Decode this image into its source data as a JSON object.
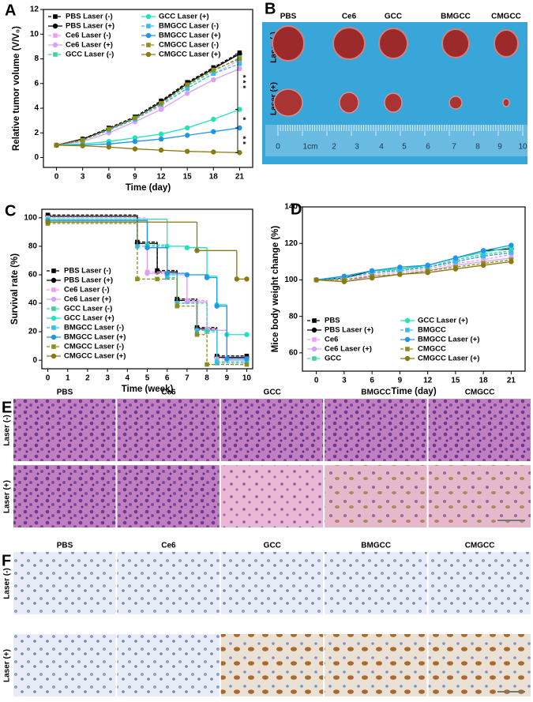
{
  "panel_labels": [
    "A",
    "B",
    "C",
    "D",
    "E",
    "F"
  ],
  "tumor_photo": {
    "columns": [
      "PBS",
      "Ce6",
      "GCC",
      "BMGCC",
      "CMGCC"
    ],
    "rows": [
      "Laser (-)",
      "Laser (+)"
    ],
    "ruler": [
      "0",
      "1cm",
      "2",
      "3",
      "4",
      "5",
      "6",
      "7",
      "8",
      "9",
      "10"
    ]
  },
  "he_stain": {
    "columns": [
      "PBS",
      "Ce6",
      "GCC",
      "BMGCC",
      "CMGCC"
    ],
    "rows": [
      "Laser (-)",
      "Laser (+)"
    ]
  },
  "ihc_stain": {
    "columns": [
      "PBS",
      "Ce6",
      "GCC",
      "BMGCC",
      "CMGCC"
    ],
    "rows": [
      "Laser (-)",
      "Laser (+)"
    ]
  },
  "chart_data": [
    {
      "type": "line",
      "xlabel": "Time (day)",
      "ylabel": "Relative tumor volume (V/V₀)",
      "x": [
        0,
        3,
        6,
        9,
        12,
        15,
        18,
        21
      ],
      "xlim": [
        -1.5,
        22.5
      ],
      "xticks": [
        0,
        3,
        6,
        9,
        12,
        15,
        18,
        21
      ],
      "ylim": [
        -0.8,
        12
      ],
      "yticks": [
        0,
        2,
        4,
        6,
        8,
        10,
        12
      ],
      "legend": "upper left",
      "legend_ncol": 2,
      "annotations": [
        "* * *",
        "*",
        "* *"
      ],
      "series": [
        {
          "name": "PBS Laser (-)",
          "color": "#000000",
          "marker": "square",
          "dash": true,
          "values": [
            1,
            1.5,
            2.4,
            3.3,
            4.6,
            6.1,
            7.3,
            8.5
          ]
        },
        {
          "name": "PBS Laser (+)",
          "color": "#000000",
          "marker": "circle",
          "dash": false,
          "values": [
            1,
            1.5,
            2.3,
            3.2,
            4.5,
            6.0,
            7.2,
            8.4
          ]
        },
        {
          "name": "Ce6 Laser (-)",
          "color": "#f49af4",
          "marker": "square",
          "dash": true,
          "values": [
            1,
            1.4,
            2.2,
            3.1,
            4.2,
            5.6,
            6.8,
            7.9
          ]
        },
        {
          "name": "Ce6 Laser (+)",
          "color": "#d6a2f5",
          "marker": "circle",
          "dash": false,
          "values": [
            1,
            1.3,
            2.0,
            2.9,
            3.9,
            5.2,
            6.3,
            7.2
          ]
        },
        {
          "name": "GCC Laser (-)",
          "color": "#3fd39a",
          "marker": "square",
          "dash": true,
          "values": [
            1,
            1.4,
            2.3,
            3.2,
            4.4,
            5.8,
            7.0,
            8.1
          ]
        },
        {
          "name": "GCC Laser (+)",
          "color": "#22e2b8",
          "marker": "circle",
          "dash": false,
          "values": [
            1,
            1.1,
            1.3,
            1.6,
            1.9,
            2.4,
            3.1,
            3.9
          ]
        },
        {
          "name": "BMGCC Laser (-)",
          "color": "#35bdf0",
          "marker": "square",
          "dash": true,
          "values": [
            1,
            1.4,
            2.2,
            3.1,
            4.3,
            5.6,
            6.8,
            7.6
          ]
        },
        {
          "name": "BMGCC Laser (+)",
          "color": "#1e96ea",
          "marker": "circle",
          "dash": false,
          "values": [
            1,
            1.0,
            1.1,
            1.3,
            1.5,
            1.8,
            2.1,
            2.4
          ]
        },
        {
          "name": "CMGCC Laser (-)",
          "color": "#8e8e1c",
          "marker": "square",
          "dash": true,
          "values": [
            1,
            1.4,
            2.3,
            3.2,
            4.4,
            5.9,
            7.1,
            8.0
          ]
        },
        {
          "name": "CMGCC Laser (+)",
          "color": "#8a7a12",
          "marker": "circle",
          "dash": false,
          "values": [
            1,
            0.95,
            0.85,
            0.7,
            0.6,
            0.5,
            0.45,
            0.4
          ]
        }
      ]
    },
    {
      "type": "line",
      "drawstyle": "steps-post",
      "xlabel": "Time (week)",
      "ylabel": "Survival rate (%)",
      "xlim": [
        -0.3,
        10.3
      ],
      "xticks": [
        0,
        1,
        2,
        3,
        4,
        5,
        6,
        7,
        8,
        9,
        10
      ],
      "ylim": [
        -6,
        106
      ],
      "yticks": [
        0,
        20,
        40,
        60,
        80,
        100
      ],
      "legend": "lower left",
      "legend_ncol": 1,
      "series": [
        {
          "name": "PBS Laser  (-)",
          "color": "#000000",
          "marker": "square",
          "dash": true,
          "x": [
            0,
            4.5,
            5.5,
            6.5,
            7.5,
            8.5,
            10
          ],
          "values": [
            102,
            83,
            63,
            43,
            23,
            3,
            3
          ]
        },
        {
          "name": "PBS Laser  (+)",
          "color": "#000000",
          "marker": "circle",
          "dash": false,
          "x": [
            0,
            4.5,
            5.5,
            6.5,
            7.5,
            8.5,
            10
          ],
          "values": [
            101,
            82,
            62,
            42,
            22,
            2,
            2
          ]
        },
        {
          "name": "Ce6 Laser  (-)",
          "color": "#f49af4",
          "marker": "square",
          "dash": true,
          "x": [
            0,
            5,
            6,
            7,
            8,
            8.5,
            10
          ],
          "values": [
            100,
            62,
            61,
            42,
            22,
            1,
            1
          ]
        },
        {
          "name": "Ce6 Laser  (+)",
          "color": "#d6a2f5",
          "marker": "circle",
          "dash": false,
          "x": [
            0,
            5,
            6,
            7,
            8,
            9,
            10
          ],
          "values": [
            99,
            61,
            60,
            41,
            21,
            0,
            0
          ]
        },
        {
          "name": "GCC Laser  (-)",
          "color": "#3fd39a",
          "marker": "square",
          "dash": true,
          "x": [
            0,
            5,
            6,
            6.5,
            8,
            8.5,
            10
          ],
          "values": [
            98,
            81,
            60,
            40,
            20,
            -1,
            -1
          ]
        },
        {
          "name": "GCC Laser  (+)",
          "color": "#22e2b8",
          "marker": "circle",
          "dash": false,
          "x": [
            0,
            6,
            7,
            8,
            8.5,
            9,
            10
          ],
          "values": [
            99,
            80,
            79,
            59,
            39,
            18,
            18
          ]
        },
        {
          "name": "BMGCC Laser  (-)",
          "color": "#35bdf0",
          "marker": "square",
          "dash": true,
          "x": [
            0,
            4.5,
            6,
            6.5,
            7.5,
            8.5,
            10
          ],
          "values": [
            97,
            80,
            58,
            40,
            21,
            -2,
            -2
          ]
        },
        {
          "name": "BMGCC Laser  (+)",
          "color": "#1e96ea",
          "marker": "circle",
          "dash": false,
          "x": [
            0,
            5,
            6,
            7,
            8,
            8.5,
            9,
            10
          ],
          "values": [
            98,
            79,
            61,
            60,
            58,
            38,
            1,
            1
          ]
        },
        {
          "name": "CMGCC Laser  (-)",
          "color": "#8e8e1c",
          "marker": "square",
          "dash": true,
          "x": [
            0,
            4.5,
            5.5,
            6.5,
            7.5,
            8,
            10
          ],
          "values": [
            96,
            57,
            57,
            38,
            18,
            -3,
            -3
          ]
        },
        {
          "name": "CMGCC Laser  (+)",
          "color": "#8a7a12",
          "marker": "circle",
          "dash": false,
          "x": [
            0,
            7.5,
            9.5,
            10
          ],
          "values": [
            97,
            77,
            57,
            57
          ]
        }
      ]
    },
    {
      "type": "line",
      "xlabel": "Time (day)",
      "ylabel": "Mice body weight change (%)",
      "x": [
        0,
        3,
        6,
        9,
        12,
        15,
        18,
        21
      ],
      "xlim": [
        -1.5,
        22.5
      ],
      "xticks": [
        0,
        3,
        6,
        9,
        12,
        15,
        18,
        21
      ],
      "ylim": [
        50,
        140
      ],
      "yticks": [
        60,
        80,
        100,
        120,
        140
      ],
      "legend": "lower left",
      "legend_ncol": 2,
      "series": [
        {
          "name": "PBS",
          "color": "#000000",
          "marker": "square",
          "dash": true,
          "values": [
            100,
            101,
            104,
            105,
            107,
            110,
            113,
            115
          ]
        },
        {
          "name": "PBS Laser (+)",
          "color": "#000000",
          "marker": "circle",
          "dash": false,
          "values": [
            100,
            101,
            105,
            106,
            108,
            112,
            116,
            117
          ]
        },
        {
          "name": "Ce6",
          "color": "#f49af4",
          "marker": "square",
          "dash": true,
          "values": [
            100,
            100,
            103,
            104,
            106,
            109,
            111,
            114
          ]
        },
        {
          "name": "Ce6 Laser (+)",
          "color": "#d6a2f5",
          "marker": "circle",
          "dash": false,
          "values": [
            100,
            99,
            102,
            103,
            105,
            108,
            110,
            112
          ]
        },
        {
          "name": "GCC",
          "color": "#3fd39a",
          "marker": "square",
          "dash": true,
          "values": [
            100,
            101,
            104,
            106,
            107,
            111,
            114,
            116
          ]
        },
        {
          "name": "GCC Laser (+)",
          "color": "#22e2b8",
          "marker": "circle",
          "dash": false,
          "values": [
            100,
            102,
            105,
            106,
            108,
            112,
            115,
            118
          ]
        },
        {
          "name": "BMGCC",
          "color": "#35bdf0",
          "marker": "square",
          "dash": true,
          "values": [
            100,
            101,
            104,
            105,
            107,
            110,
            113,
            115
          ]
        },
        {
          "name": "BMGCC Laser (+)",
          "color": "#1e96ea",
          "marker": "circle",
          "dash": false,
          "values": [
            100,
            102,
            105,
            107,
            108,
            112,
            116,
            119
          ]
        },
        {
          "name": "CMGCC",
          "color": "#8e8e1c",
          "marker": "square",
          "dash": true,
          "values": [
            100,
            100,
            102,
            103,
            105,
            107,
            109,
            111
          ]
        },
        {
          "name": "CMGCC Laser (+)",
          "color": "#8a7a12",
          "marker": "circle",
          "dash": false,
          "values": [
            100,
            99,
            101,
            103,
            104,
            106,
            108,
            110
          ]
        }
      ]
    }
  ]
}
